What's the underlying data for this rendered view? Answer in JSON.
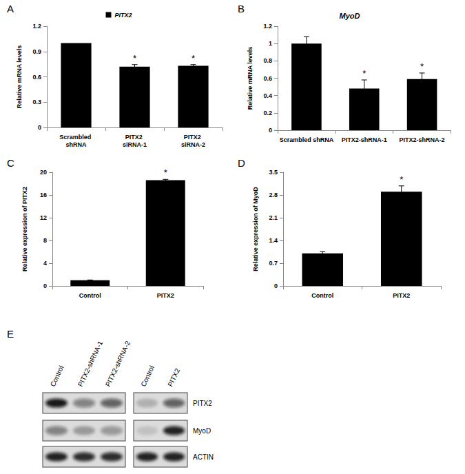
{
  "chart_data": [
    {
      "panel": "A",
      "type": "bar",
      "legend": "top",
      "categories": [
        "Scrambled shRNA",
        "PITX2 siRNA-1",
        "PITX2 siRNA-2"
      ],
      "series": [
        {
          "name": "PITX2",
          "color": "#000000",
          "values": [
            1.0,
            0.72,
            0.73
          ],
          "errors": [
            0,
            0.025,
            0.015
          ],
          "marks": [
            null,
            "*",
            "*"
          ]
        }
      ],
      "y_label": "Relative mRNA levels",
      "ylim": [
        0,
        1.2
      ],
      "yticks": [
        0,
        0.3,
        0.6,
        0.9,
        1.2
      ],
      "grid": false
    },
    {
      "panel": "B",
      "type": "bar",
      "title": "MyoD",
      "categories": [
        "Scrambled shRNA",
        "PITX2-shRNA-1",
        "PITX2-shRNA-2"
      ],
      "values": [
        1.0,
        0.48,
        0.59
      ],
      "errors": [
        0.08,
        0.1,
        0.07
      ],
      "marks": [
        null,
        "*",
        "*"
      ],
      "color": "#000000",
      "y_label": "Relative mRNA levels",
      "ylim": [
        0,
        1.2
      ],
      "yticks": [
        0,
        0.2,
        0.4,
        0.6,
        0.8,
        1,
        1.2
      ],
      "grid": false
    },
    {
      "panel": "C",
      "type": "bar",
      "categories": [
        "Control",
        "PITX2"
      ],
      "values": [
        1.0,
        18.6
      ],
      "errors": [
        0.05,
        0.15
      ],
      "marks": [
        null,
        "*"
      ],
      "color": "#000000",
      "y_label": "Relative expression of PITX2",
      "ylim": [
        0,
        20
      ],
      "yticks": [
        0,
        4,
        8,
        12,
        16,
        20
      ],
      "grid": false
    },
    {
      "panel": "D",
      "type": "bar",
      "categories": [
        "Control",
        "PITX2"
      ],
      "values": [
        1.0,
        2.9
      ],
      "errors": [
        0.05,
        0.18
      ],
      "marks": [
        null,
        "*"
      ],
      "color": "#000000",
      "y_label": "Relative expression of MyoD",
      "ylim": [
        0,
        3.5
      ],
      "yticks": [
        0,
        0.7,
        1.4,
        2.1,
        2.8,
        3.5
      ],
      "grid": false
    }
  ],
  "blot": {
    "panel": "E",
    "groups": [
      {
        "lanes": [
          "Control",
          "PITX2-shRNA-1",
          "PITX2-shRNA-2"
        ]
      },
      {
        "lanes": [
          "Control",
          "PITX2"
        ]
      }
    ],
    "rows": [
      {
        "label": "PITX2",
        "intensity": [
          [
            0.95,
            0.45,
            0.6
          ],
          [
            0.2,
            0.6
          ]
        ]
      },
      {
        "label": "MyoD",
        "intensity": [
          [
            0.45,
            0.3,
            0.35
          ],
          [
            0.12,
            0.9
          ]
        ]
      },
      {
        "label": "ACTIN",
        "intensity": [
          [
            0.9,
            0.85,
            0.85
          ],
          [
            0.9,
            0.9
          ]
        ]
      }
    ]
  }
}
